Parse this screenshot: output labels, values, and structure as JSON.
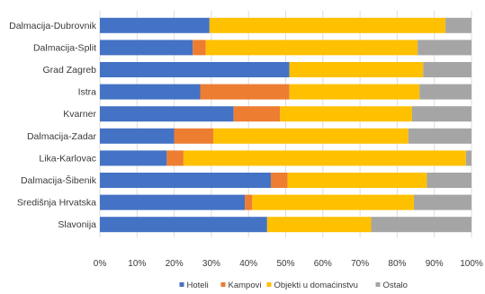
{
  "chart_data": {
    "type": "bar",
    "orientation": "horizontal",
    "stacked": true,
    "percent": true,
    "categories": [
      "Dalmacija-Dubrovnik",
      "Dalmacija-Split",
      "Grad Zagreb",
      "Istra",
      "Kvarner",
      "Dalmacija-Zadar",
      "Lika-Karlovac",
      "Dalmacija-Šibenik",
      "Središnja Hrvatska",
      "Slavonija"
    ],
    "series": [
      {
        "name": "Hoteli",
        "color": "#4472c4",
        "values": [
          29.5,
          25,
          51,
          27,
          36,
          20,
          18,
          46,
          39,
          45
        ]
      },
      {
        "name": "Kampovi",
        "color": "#ed7d31",
        "values": [
          0,
          3.5,
          0,
          24,
          12.5,
          10.5,
          4.5,
          4.5,
          2,
          0
        ]
      },
      {
        "name": "Objekti u domaćinstvu",
        "color": "#ffc000",
        "values": [
          63.5,
          57,
          36,
          35,
          35.5,
          52.5,
          76,
          37.5,
          43.5,
          28
        ]
      },
      {
        "name": "Ostalo",
        "color": "#a5a5a5",
        "values": [
          7,
          14.5,
          13,
          14,
          16,
          17,
          1.5,
          12,
          15.5,
          27
        ]
      }
    ],
    "xlim": [
      0,
      100
    ],
    "x_ticks": [
      "0%",
      "10%",
      "20%",
      "30%",
      "40%",
      "50%",
      "60%",
      "70%",
      "80%",
      "90%",
      "100%"
    ],
    "legend_position": "bottom",
    "grid": true
  }
}
